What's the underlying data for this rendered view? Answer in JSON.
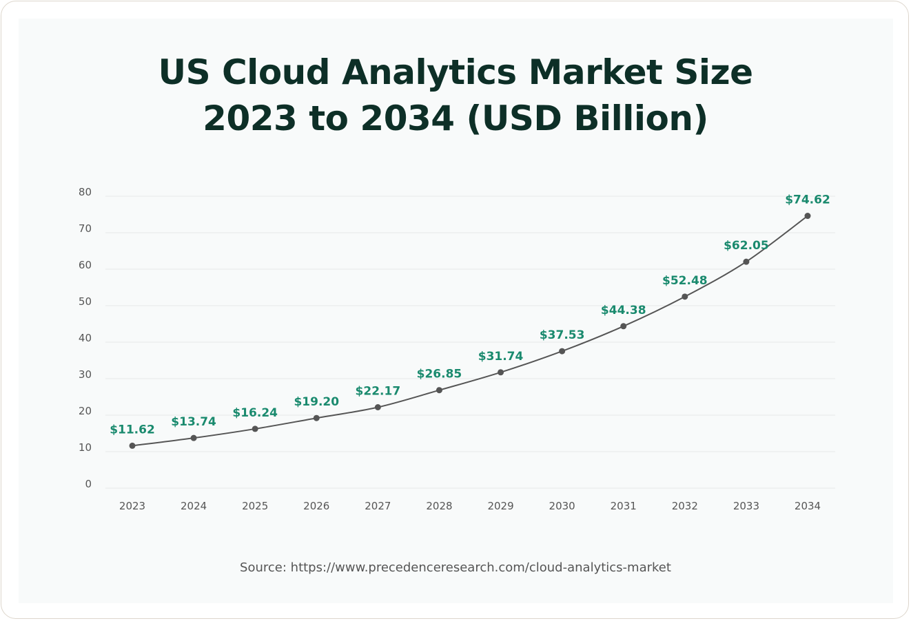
{
  "chart_data": {
    "type": "line",
    "title_line1": "US Cloud Analytics Market Size",
    "title_line2": "2023 to 2034 (USD Billion)",
    "categories": [
      "2023",
      "2024",
      "2025",
      "2026",
      "2027",
      "2028",
      "2029",
      "2030",
      "2031",
      "2032",
      "2033",
      "2034"
    ],
    "values": [
      11.62,
      13.74,
      16.24,
      19.2,
      22.17,
      26.85,
      31.74,
      37.53,
      44.38,
      52.48,
      62.05,
      74.62
    ],
    "data_labels": [
      "$11.62",
      "$13.74",
      "$16.24",
      "$19.20",
      "$22.17",
      "$26.85",
      "$31.74",
      "$37.53",
      "$44.38",
      "$52.48",
      "$62.05",
      "$74.62"
    ],
    "yticks": [
      0,
      10,
      20,
      30,
      40,
      50,
      60,
      70,
      80
    ],
    "ylim": [
      0,
      80
    ],
    "xlabel": "",
    "ylabel": "",
    "grid": true,
    "legend": "none",
    "colors": {
      "line": "#555555",
      "label": "#1a8a6e",
      "grid": "#e6e8e8"
    }
  },
  "source": "Source: https://www.precedenceresearch.com/cloud-analytics-market"
}
